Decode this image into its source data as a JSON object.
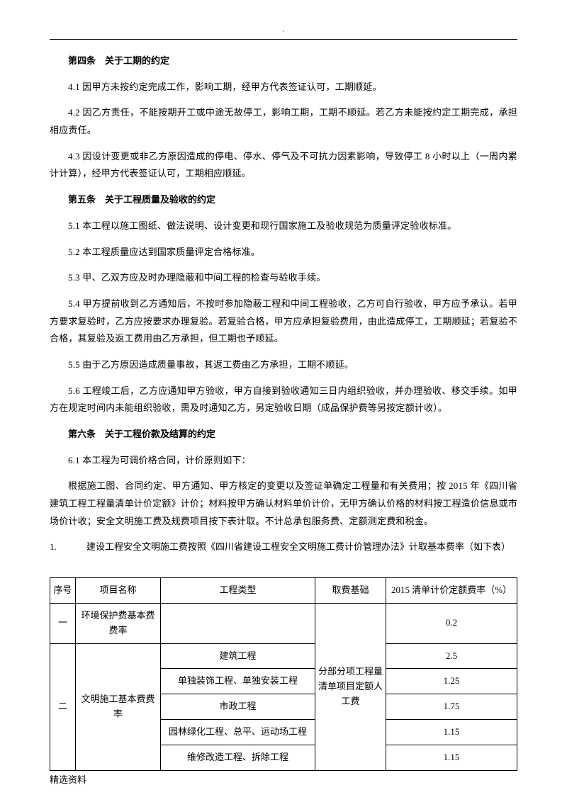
{
  "topMark": "'",
  "s4": {
    "title": "第四条　关于工期的约定",
    "p1": "4.1 因甲方未按约定完成工作，影响工期，经甲方代表签证认可，工期顺延。",
    "p2": "4.2 因乙方责任，不能按期开工或中途无故停工，影响工期，工期不顺延。若乙方未能按约定工期完成，承担相应责任。",
    "p3": "4.3 因设计变更或非乙方原因造成的停电、停水、停气及不可抗力因素影响，导致停工 8 小时以上（一周内累计计算），经甲方代表签证认可，工期相应顺延。"
  },
  "s5": {
    "title": "第五条　关于工程质量及验收的约定",
    "p1": "5.1 本工程以施工图纸、做法说明、设计变更和现行国家施工及验收规范为质量评定验收标准。",
    "p2": "5.2 本工程质量应达到国家质量评定合格标准。",
    "p3": "5.3 甲、乙双方应及时办理隐蔽和中间工程的检查与验收手续。",
    "p4": "5.4 甲方提前收到乙方通知后，不按时参加隐蔽工程和中间工程验收，乙方可自行验收，甲方应予承认。若甲方要求复验时，乙方应按要求办理复验。若复验合格，甲方应承担复验费用，由此造成停工，工期顺延；若复验不合格，其复验及返工费用由乙方承担，但工期也予顺延。",
    "p5": "5.5 由于乙方原因造成质量事故，其返工费由乙方承担，工期不顺延。",
    "p6": "5.6 工程竣工后，乙方应通知甲方验收，甲方自接到验收通知三日内组织验收，并办理验收、移交手续。如甲方在规定时间内未能组织验收，需及时通知乙方，另定验收日期（成品保护费等另按定额计收）。"
  },
  "s6": {
    "title": "第六条　关于工程价款及结算的约定",
    "p1": "6.1 本工程为可调价格合同，计价原则如下：",
    "p2": "根据施工图、合同约定、甲方通知、甲方核定的变更以及签证单确定工程量和有关费用；按 2015 年《四川省建筑工程工程量清单计价定额》计价；材料按甲方确认材料单价计价，无甲方确认价格的材料按工程造价信息或市场价计收；安全文明施工费及规费项目按下表计取。不计总承包服务费、定额测定费和税金。",
    "item1_num": "1.",
    "item1_text": "建设工程安全文明施工费按照《四川省建设工程安全文明施工费计价管理办法》计取基本费率（如下表）"
  },
  "table": {
    "headers": {
      "seq": "序号",
      "name": "项目名称",
      "type": "工程类型",
      "basis": "取费基础",
      "rate": "2015 清单计价定额费率（%）"
    },
    "row1": {
      "seq": "一",
      "name": "环境保护费基本费费率",
      "rate": "0.2"
    },
    "basis": "分部分项工程量清单项目定额人工费",
    "row2": {
      "seq": "二",
      "name": "文明施工基本费费率",
      "types": {
        "a": "建筑工程",
        "b": "单独装饰工程、单独安装工程",
        "c": "市政工程",
        "d": "园林绿化工程、总平、运动场工程",
        "e": "维修改造工程、拆除工程"
      },
      "rates": {
        "a": "2.5",
        "b": "1.25",
        "c": "1.75",
        "d": "1.15",
        "e": "1.15"
      }
    }
  },
  "footer": "精选资料"
}
